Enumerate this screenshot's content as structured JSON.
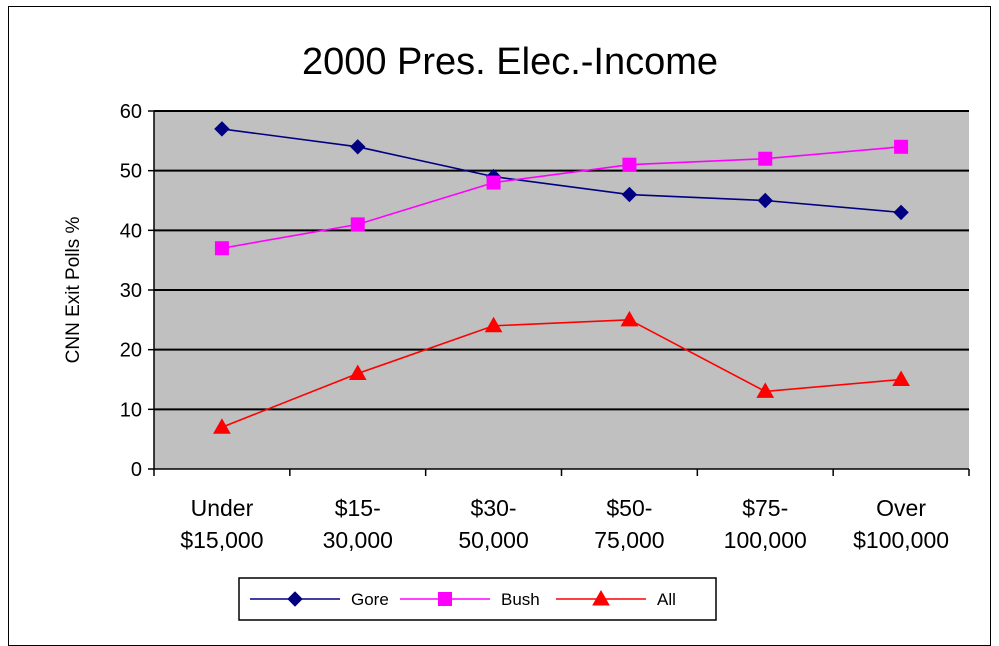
{
  "chart_data": {
    "type": "line",
    "title": "2000 Pres. Elec.-Income",
    "ylabel": "CNN Exit Polls %",
    "xlabel": "",
    "ylim": [
      0,
      60
    ],
    "yticks": [
      0,
      10,
      20,
      30,
      40,
      50,
      60
    ],
    "categories": [
      [
        "Under",
        "$15,000"
      ],
      [
        "$15-",
        "30,000"
      ],
      [
        "$30-",
        "50,000"
      ],
      [
        "$50-",
        "75,000"
      ],
      [
        "$75-",
        "100,000"
      ],
      [
        "Over",
        "$100,000"
      ]
    ],
    "series": [
      {
        "name": "Gore",
        "color": "#000080",
        "marker": "diamond",
        "values": [
          57,
          54,
          49,
          46,
          45,
          43
        ]
      },
      {
        "name": "Bush",
        "color": "#ff00ff",
        "marker": "square",
        "values": [
          37,
          41,
          48,
          51,
          52,
          54
        ]
      },
      {
        "name": "All",
        "color": "#ff0000",
        "marker": "triangle",
        "values": [
          7,
          16,
          24,
          25,
          13,
          15
        ]
      }
    ],
    "grid": true,
    "plot_background": "#c0c0c0",
    "legend_position": "bottom"
  }
}
